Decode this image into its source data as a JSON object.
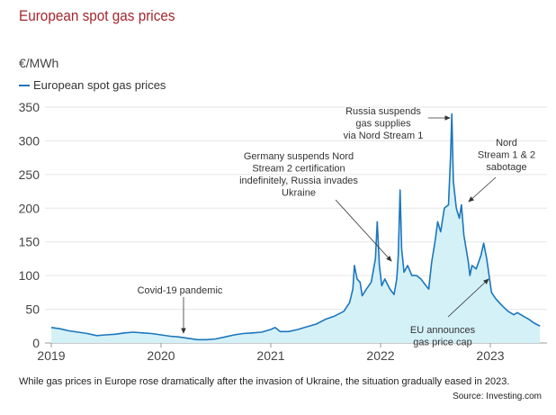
{
  "title": "European spot gas prices",
  "colors": {
    "title": "#a3262d",
    "line": "#1d76bb",
    "fill": "#d4f1f8",
    "grid": "#e6e6e6"
  },
  "caption": "While gas prices in Europe rose dramatically after the invasion of Ukraine, the situation gradually eased in 2023.",
  "source": "Source: Investing.com",
  "chart_data": {
    "type": "area",
    "ylabel": "€/MWh",
    "legend": "top-left",
    "grid": true,
    "ylim": [
      0,
      350
    ],
    "yticks": [
      "0",
      "50",
      "100",
      "150",
      "200",
      "250",
      "300",
      "350"
    ],
    "xticks": [
      "2019",
      "2020",
      "2021",
      "2022",
      "2023"
    ],
    "series": [
      {
        "name": "European spot gas prices",
        "points": [
          [
            "2019-01-01",
            23
          ],
          [
            "2019-02-01",
            21
          ],
          [
            "2019-03-01",
            18
          ],
          [
            "2019-04-01",
            16
          ],
          [
            "2019-05-01",
            14
          ],
          [
            "2019-06-01",
            11
          ],
          [
            "2019-07-01",
            12
          ],
          [
            "2019-08-01",
            13
          ],
          [
            "2019-09-01",
            15
          ],
          [
            "2019-10-01",
            16
          ],
          [
            "2019-11-01",
            15
          ],
          [
            "2019-12-01",
            14
          ],
          [
            "2020-01-01",
            12
          ],
          [
            "2020-02-01",
            10
          ],
          [
            "2020-03-01",
            9
          ],
          [
            "2020-04-01",
            7
          ],
          [
            "2020-05-01",
            5
          ],
          [
            "2020-06-01",
            5
          ],
          [
            "2020-07-01",
            6
          ],
          [
            "2020-08-01",
            9
          ],
          [
            "2020-09-01",
            12
          ],
          [
            "2020-10-01",
            14
          ],
          [
            "2020-11-01",
            15
          ],
          [
            "2020-12-01",
            16
          ],
          [
            "2021-01-01",
            20
          ],
          [
            "2021-01-15",
            23
          ],
          [
            "2021-02-01",
            17
          ],
          [
            "2021-03-01",
            17
          ],
          [
            "2021-04-01",
            20
          ],
          [
            "2021-05-01",
            24
          ],
          [
            "2021-06-01",
            28
          ],
          [
            "2021-07-01",
            35
          ],
          [
            "2021-08-01",
            40
          ],
          [
            "2021-09-01",
            47
          ],
          [
            "2021-09-20",
            60
          ],
          [
            "2021-10-01",
            80
          ],
          [
            "2021-10-06",
            115
          ],
          [
            "2021-10-15",
            95
          ],
          [
            "2021-10-25",
            90
          ],
          [
            "2021-11-01",
            70
          ],
          [
            "2021-11-15",
            80
          ],
          [
            "2021-12-01",
            90
          ],
          [
            "2021-12-15",
            125
          ],
          [
            "2021-12-21",
            180
          ],
          [
            "2021-12-28",
            115
          ],
          [
            "2022-01-05",
            85
          ],
          [
            "2022-01-15",
            95
          ],
          [
            "2022-02-01",
            80
          ],
          [
            "2022-02-15",
            72
          ],
          [
            "2022-02-24",
            95
          ],
          [
            "2022-03-01",
            130
          ],
          [
            "2022-03-07",
            227
          ],
          [
            "2022-03-12",
            140
          ],
          [
            "2022-03-20",
            105
          ],
          [
            "2022-04-01",
            115
          ],
          [
            "2022-04-15",
            100
          ],
          [
            "2022-05-01",
            100
          ],
          [
            "2022-05-15",
            95
          ],
          [
            "2022-06-01",
            85
          ],
          [
            "2022-06-10",
            80
          ],
          [
            "2022-06-20",
            120
          ],
          [
            "2022-07-01",
            150
          ],
          [
            "2022-07-10",
            180
          ],
          [
            "2022-07-20",
            165
          ],
          [
            "2022-08-01",
            200
          ],
          [
            "2022-08-15",
            205
          ],
          [
            "2022-08-22",
            280
          ],
          [
            "2022-08-26",
            340
          ],
          [
            "2022-08-31",
            240
          ],
          [
            "2022-09-10",
            200
          ],
          [
            "2022-09-20",
            185
          ],
          [
            "2022-09-27",
            205
          ],
          [
            "2022-10-05",
            160
          ],
          [
            "2022-10-20",
            120
          ],
          [
            "2022-10-25",
            100
          ],
          [
            "2022-11-01",
            115
          ],
          [
            "2022-11-15",
            110
          ],
          [
            "2022-12-01",
            130
          ],
          [
            "2022-12-10",
            148
          ],
          [
            "2022-12-20",
            125
          ],
          [
            "2023-01-05",
            75
          ],
          [
            "2023-01-20",
            65
          ],
          [
            "2023-02-10",
            55
          ],
          [
            "2023-03-01",
            47
          ],
          [
            "2023-03-20",
            42
          ],
          [
            "2023-04-01",
            45
          ],
          [
            "2023-04-20",
            40
          ],
          [
            "2023-05-10",
            35
          ],
          [
            "2023-05-25",
            30
          ],
          [
            "2023-06-15",
            25
          ]
        ]
      }
    ],
    "annotations": [
      {
        "lines": [
          "Covid-19 pandemic"
        ]
      },
      {
        "lines": [
          "Germany suspends Nord",
          "Stream 2 certification",
          "indefinitely, Russia invades",
          "Ukraine"
        ]
      },
      {
        "lines": [
          "Russia suspends",
          "gas supplies",
          "via Nord Stream 1"
        ]
      },
      {
        "lines": [
          "Nord",
          "Stream 1 & 2",
          "sabotage"
        ]
      },
      {
        "lines": [
          "EU announces",
          "gas price cap"
        ]
      }
    ]
  }
}
